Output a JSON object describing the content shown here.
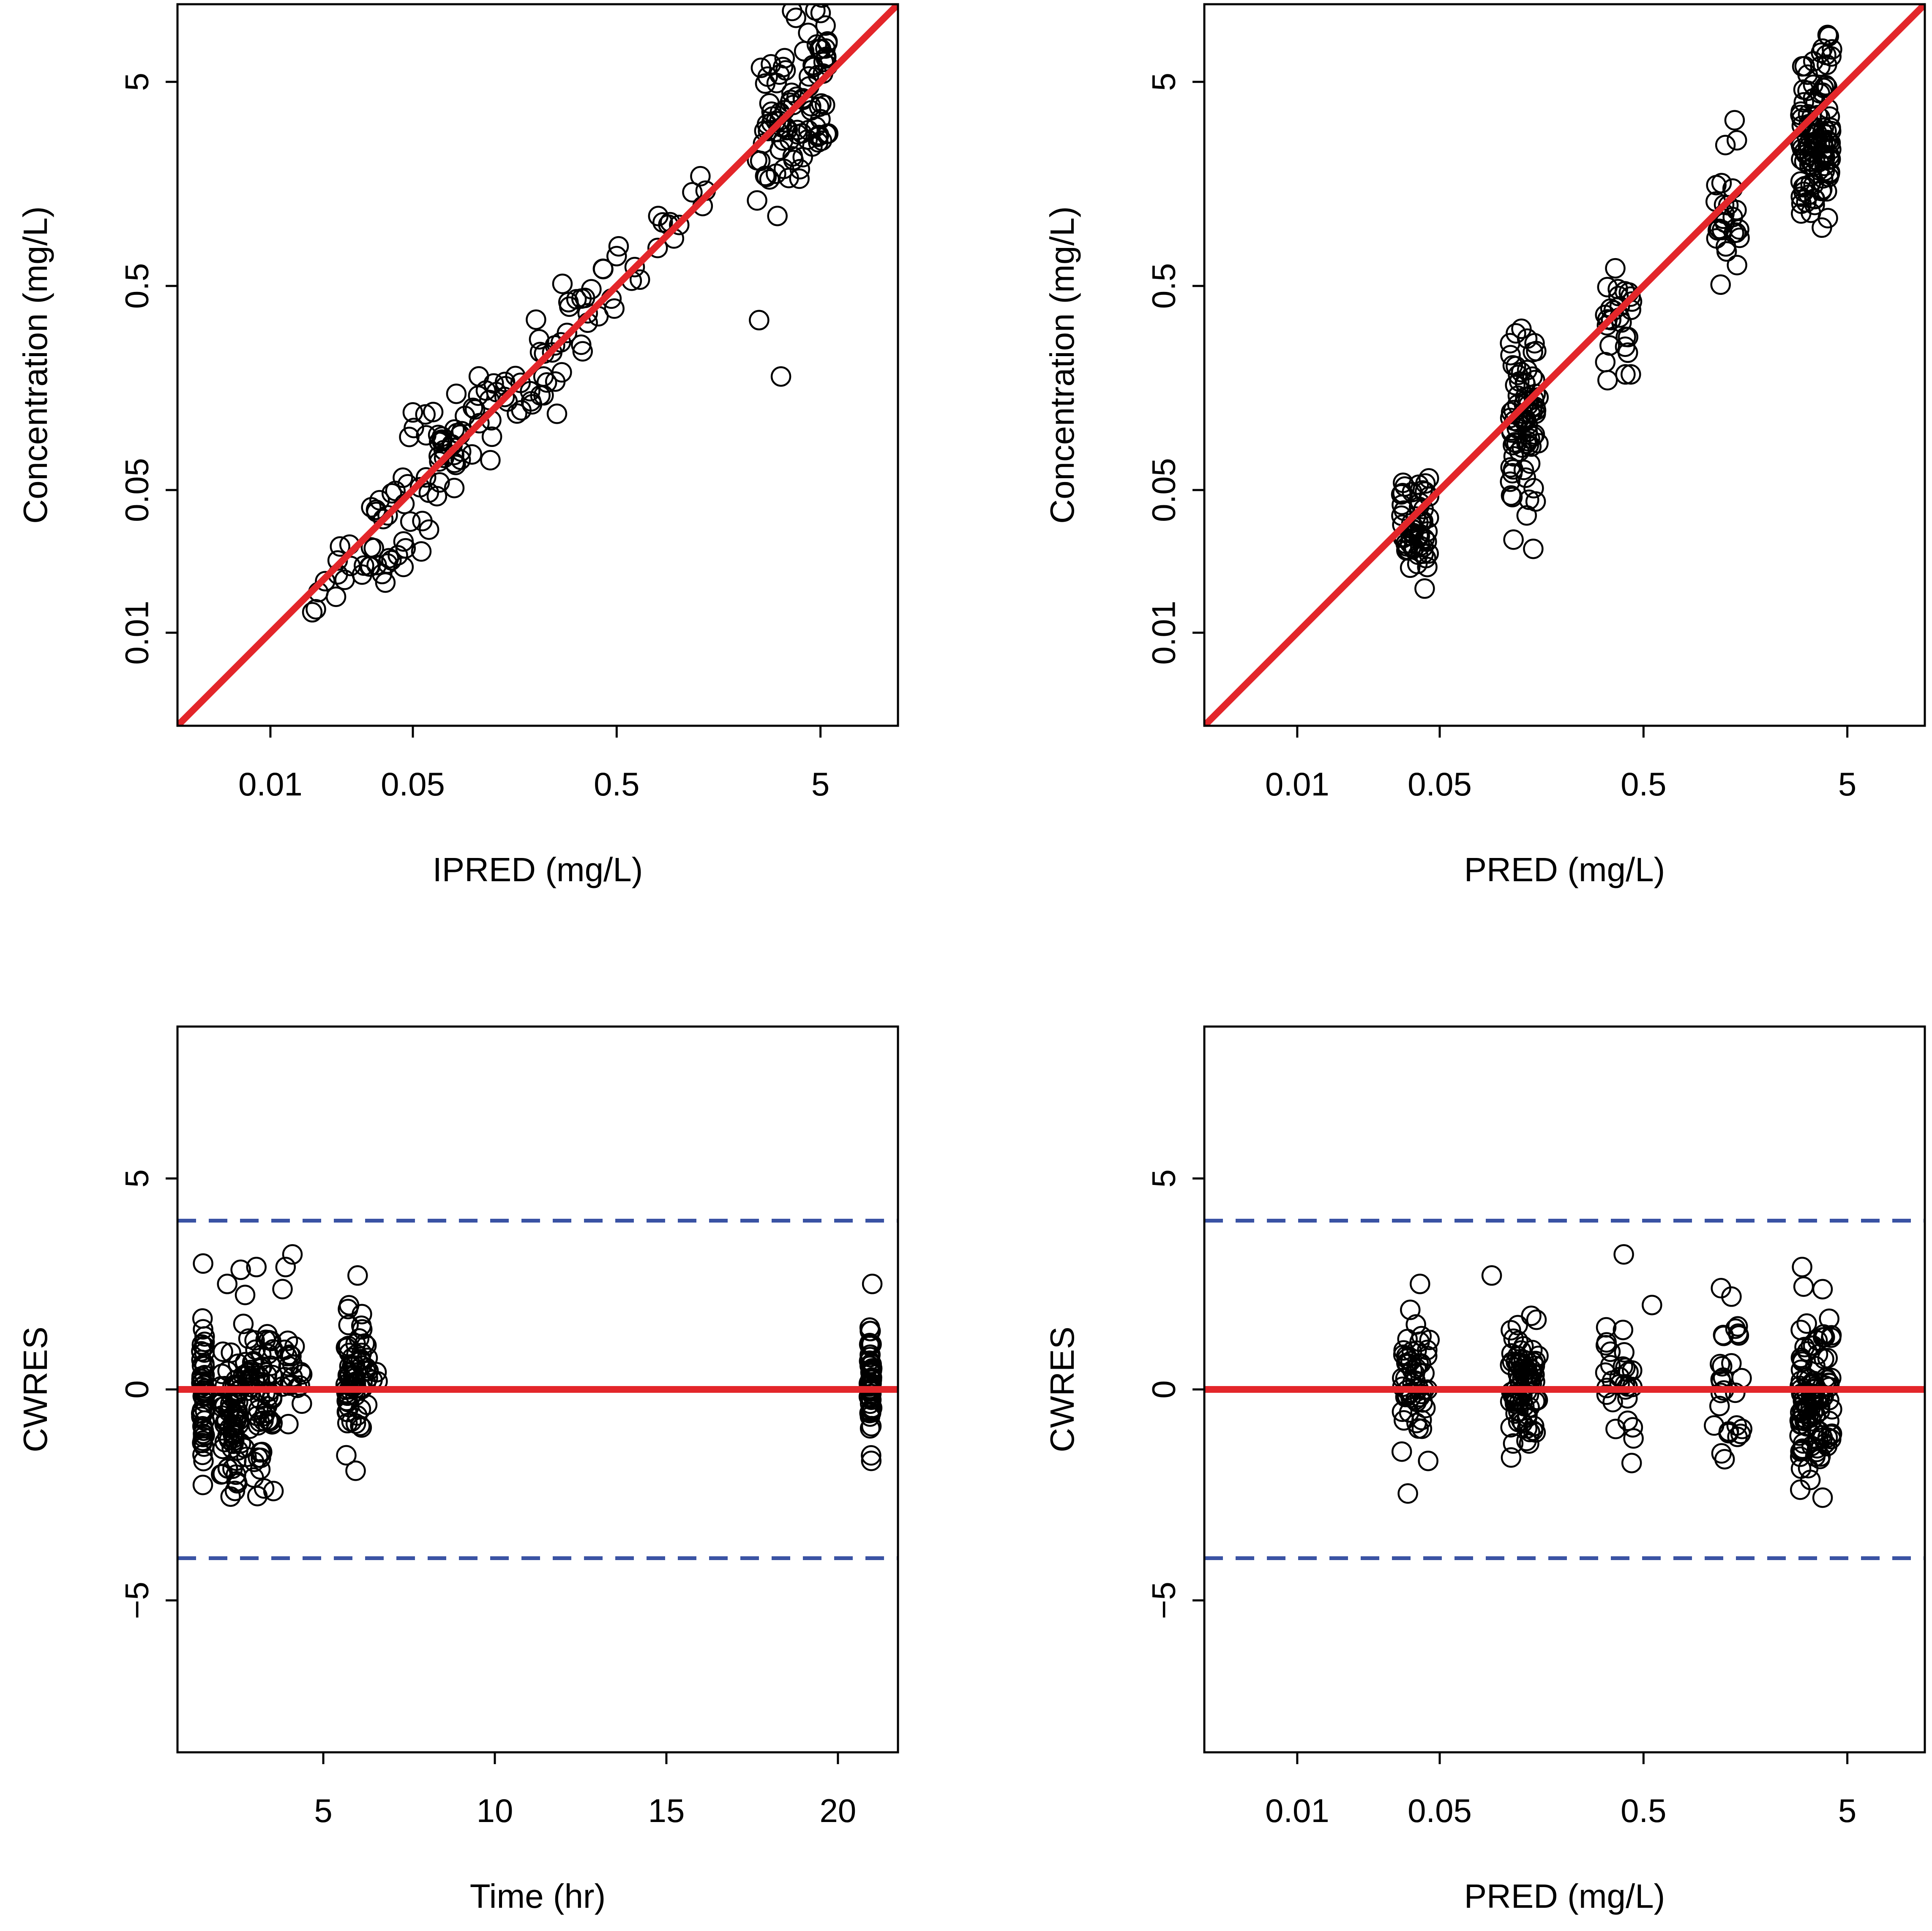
{
  "chart_data": [
    {
      "type": "scatter",
      "id": "p1",
      "title": "",
      "xlabel": "IPRED (mg/L)",
      "ylabel": "Concentration (mg/L)",
      "xscale": "log",
      "yscale": "log",
      "xlim": [
        0.0035,
        12
      ],
      "ylim": [
        0.0035,
        12
      ],
      "xticks": [
        0.01,
        0.05,
        0.5,
        5
      ],
      "xtick_labels": [
        "0.01",
        "0.05",
        "0.5",
        "5"
      ],
      "yticks": [
        0.01,
        0.05,
        0.5,
        5
      ],
      "ytick_labels": [
        "0.01",
        "0.05",
        "0.5",
        "5"
      ],
      "reference_line": {
        "type": "identity",
        "color": "#e3262a"
      },
      "point_groups": [
        {
          "kind": "cloud",
          "n": 14,
          "x_range": [
            0.015,
            0.035
          ],
          "log_ratio_sd": 0.12,
          "seed": 11
        },
        {
          "kind": "cloud",
          "n": 30,
          "x_range": [
            0.03,
            0.06
          ],
          "log_ratio_sd": 0.16,
          "seed": 12
        },
        {
          "kind": "cloud",
          "n": 42,
          "x_range": [
            0.06,
            0.16
          ],
          "log_ratio_sd": 0.11,
          "seed": 13
        },
        {
          "kind": "cloud",
          "n": 28,
          "x_range": [
            0.16,
            0.35
          ],
          "log_ratio_sd": 0.1,
          "seed": 14
        },
        {
          "kind": "cloud",
          "n": 22,
          "x_range": [
            0.35,
            1.4
          ],
          "log_ratio_sd": 0.09,
          "seed": 15
        },
        {
          "kind": "cloud",
          "n": 96,
          "x_range": [
            2.4,
            5.6
          ],
          "log_ratio_sd": 0.2,
          "seed": 16
        },
        {
          "kind": "list",
          "x": [
            0.045,
            0.06,
            0.045,
            0.048,
            0.08,
            0.033,
            0.055,
            0.12,
            0.25,
            0.5,
            0.8,
            2.5,
            3.2
          ],
          "y": [
            0.028,
            0.032,
            0.021,
            0.091,
            0.068,
            0.04,
            0.025,
            0.07,
            0.17,
            0.7,
            1.1,
            0.34,
            0.18
          ]
        }
      ]
    },
    {
      "type": "scatter",
      "id": "p2",
      "title": "",
      "xlabel": "PRED (mg/L)",
      "ylabel": "Concentration (mg/L)",
      "xscale": "log",
      "yscale": "log",
      "xlim": [
        0.0035,
        12
      ],
      "ylim": [
        0.0035,
        12
      ],
      "xticks": [
        0.01,
        0.05,
        0.5,
        5
      ],
      "xtick_labels": [
        "0.01",
        "0.05",
        "0.5",
        "5"
      ],
      "yticks": [
        0.01,
        0.05,
        0.5,
        5
      ],
      "ytick_labels": [
        "0.01",
        "0.05",
        "0.5",
        "5"
      ],
      "reference_line": {
        "type": "identity",
        "color": "#e3262a"
      },
      "point_groups": [
        {
          "kind": "column",
          "n": 55,
          "x_center": 0.038,
          "x_spread": 0.07,
          "y_center": 0.036,
          "y_log_sd": 0.14,
          "seed": 21
        },
        {
          "kind": "column",
          "n": 80,
          "x_center": 0.13,
          "x_spread": 0.07,
          "y_center": 0.12,
          "y_log_sd": 0.2,
          "seed": 22
        },
        {
          "kind": "column",
          "n": 28,
          "x_center": 0.38,
          "x_spread": 0.07,
          "y_center": 0.33,
          "y_log_sd": 0.18,
          "seed": 23
        },
        {
          "kind": "column",
          "n": 26,
          "x_center": 1.3,
          "x_spread": 0.07,
          "y_center": 1.1,
          "y_log_sd": 0.18,
          "seed": 24
        },
        {
          "kind": "column",
          "n": 110,
          "x_center": 3.5,
          "x_spread": 0.08,
          "y_center": 2.6,
          "y_log_sd": 0.2,
          "seed": 25
        }
      ]
    },
    {
      "type": "scatter",
      "id": "p3",
      "title": "",
      "xlabel": "Time (hr)",
      "ylabel": "CWRES",
      "xscale": "linear",
      "yscale": "linear",
      "xlim": [
        0.75,
        21.75
      ],
      "ylim": [
        -8.6,
        8.6
      ],
      "xticks": [
        5,
        10,
        15,
        20
      ],
      "xtick_labels": [
        "5",
        "10",
        "15",
        "20"
      ],
      "yticks": [
        -5,
        0,
        5
      ],
      "ytick_labels": [
        "−5",
        "0",
        "5"
      ],
      "reference_line": {
        "type": "horizontal",
        "y": 0,
        "color": "#e3262a"
      },
      "bounds": {
        "values": [
          -4,
          4
        ],
        "color": "#3a53a4"
      },
      "point_groups": [
        {
          "kind": "column",
          "n": 48,
          "x_center": 1.5,
          "x_jitter": 0.06,
          "y_center": 0.1,
          "y_sd": 1.0,
          "seed": 31
        },
        {
          "kind": "column",
          "n": 70,
          "x_center": 2.3,
          "x_jitter": 0.3,
          "y_center": -0.5,
          "y_sd": 0.9,
          "seed": 32
        },
        {
          "kind": "column",
          "n": 70,
          "x_center": 3.1,
          "x_jitter": 0.45,
          "y_center": -0.2,
          "y_sd": 1.0,
          "seed": 33
        },
        {
          "kind": "column",
          "n": 20,
          "x_center": 4.1,
          "x_jitter": 0.3,
          "y_center": 0.6,
          "y_sd": 0.9,
          "seed": 34
        },
        {
          "kind": "column",
          "n": 60,
          "x_center": 5.9,
          "x_jitter": 0.25,
          "y_center": 0.3,
          "y_sd": 0.9,
          "seed": 35
        },
        {
          "kind": "column",
          "n": 12,
          "x_center": 6.4,
          "x_jitter": 0.2,
          "y_center": 0.2,
          "y_sd": 0.8,
          "seed": 36
        },
        {
          "kind": "column",
          "n": 50,
          "x_center": 20.95,
          "x_jitter": 0.05,
          "y_center": 0.2,
          "y_sd": 0.7,
          "seed": 37
        },
        {
          "kind": "list",
          "x": [
            3.9,
            4.1,
            3.05,
            2.2,
            6.0,
            21.0
          ],
          "y": [
            2.9,
            3.2,
            2.9,
            2.5,
            2.7,
            2.5
          ]
        }
      ]
    },
    {
      "type": "scatter",
      "id": "p4",
      "title": "",
      "xlabel": "PRED (mg/L)",
      "ylabel": "CWRES",
      "xscale": "log",
      "yscale": "linear",
      "xlim": [
        0.0035,
        12
      ],
      "ylim": [
        -8.6,
        8.6
      ],
      "xticks": [
        0.01,
        0.05,
        0.5,
        5
      ],
      "xtick_labels": [
        "0.01",
        "0.05",
        "0.5",
        "5"
      ],
      "yticks": [
        -5,
        0,
        5
      ],
      "ytick_labels": [
        "−5",
        "0",
        "5"
      ],
      "reference_line": {
        "type": "horizontal",
        "y": 0,
        "color": "#e3262a"
      },
      "bounds": {
        "values": [
          -4,
          4
        ],
        "color": "#3a53a4"
      },
      "point_groups": [
        {
          "kind": "column",
          "n": 55,
          "x_center": 0.038,
          "x_spread": 0.07,
          "y_center": 0.1,
          "y_sd": 0.7,
          "seed": 41
        },
        {
          "kind": "column",
          "n": 80,
          "x_center": 0.13,
          "x_spread": 0.07,
          "y_center": 0.1,
          "y_sd": 0.75,
          "seed": 42
        },
        {
          "kind": "column",
          "n": 28,
          "x_center": 0.38,
          "x_spread": 0.07,
          "y_center": 0.1,
          "y_sd": 0.8,
          "seed": 43
        },
        {
          "kind": "column",
          "n": 26,
          "x_center": 1.3,
          "x_spread": 0.07,
          "y_center": 0.0,
          "y_sd": 0.9,
          "seed": 44
        },
        {
          "kind": "column",
          "n": 110,
          "x_center": 3.5,
          "x_spread": 0.08,
          "y_center": -0.1,
          "y_sd": 1.0,
          "seed": 45
        },
        {
          "kind": "list",
          "x": [
            0.4,
            0.09,
            1.2,
            1.35,
            3.0,
            0.04,
            0.55
          ],
          "y": [
            3.2,
            2.7,
            2.4,
            2.2,
            2.9,
            2.5,
            2.0
          ]
        }
      ]
    }
  ]
}
